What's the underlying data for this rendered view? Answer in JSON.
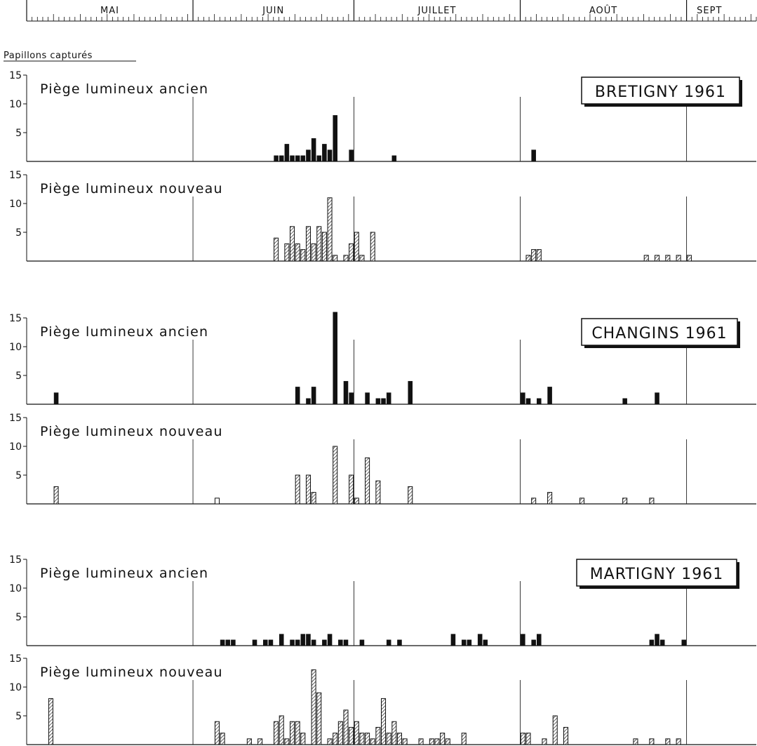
{
  "chart_data": {
    "type": "bar",
    "ylabel": "Papillons capturés",
    "months": [
      "MAI",
      "JUIN",
      "JUILLET",
      "AOÛT",
      "SEPT"
    ],
    "month_start_days": [
      0,
      31,
      61,
      92,
      123
    ],
    "x_range_days": [
      0,
      136
    ],
    "ylim": [
      0,
      15
    ],
    "yticks": [
      5,
      10,
      15
    ],
    "panel_labels": {
      "ancien": "Piège lumineux ancien",
      "nouveau": "Piège lumineux nouveau"
    },
    "stations": [
      {
        "name": "BRETIGNY 1961",
        "series": [
          {
            "name": "Piège lumineux ancien",
            "style": "solid",
            "bars": [
              [
                46,
                1
              ],
              [
                47,
                1
              ],
              [
                48,
                3
              ],
              [
                49,
                1
              ],
              [
                50,
                1
              ],
              [
                51,
                1
              ],
              [
                52,
                2
              ],
              [
                53,
                4
              ],
              [
                54,
                1
              ],
              [
                55,
                3
              ],
              [
                56,
                2
              ],
              [
                57,
                8
              ],
              [
                60,
                2
              ],
              [
                68,
                1
              ],
              [
                94,
                2
              ]
            ]
          },
          {
            "name": "Piège lumineux nouveau",
            "style": "hatched",
            "bars": [
              [
                46,
                4
              ],
              [
                48,
                3
              ],
              [
                49,
                6
              ],
              [
                50,
                3
              ],
              [
                51,
                2
              ],
              [
                52,
                6
              ],
              [
                53,
                3
              ],
              [
                54,
                6
              ],
              [
                55,
                5
              ],
              [
                56,
                11
              ],
              [
                57,
                1
              ],
              [
                59,
                1
              ],
              [
                60,
                3
              ],
              [
                61,
                5
              ],
              [
                62,
                1
              ],
              [
                64,
                5
              ],
              [
                93,
                1
              ],
              [
                94,
                2
              ],
              [
                95,
                2
              ],
              [
                115,
                1
              ],
              [
                117,
                1
              ],
              [
                119,
                1
              ],
              [
                121,
                1
              ],
              [
                123,
                1
              ]
            ]
          }
        ]
      },
      {
        "name": "CHANGINS 1961",
        "series": [
          {
            "name": "Piège lumineux ancien",
            "style": "solid",
            "bars": [
              [
                5,
                2
              ],
              [
                50,
                3
              ],
              [
                52,
                1
              ],
              [
                53,
                3
              ],
              [
                57,
                16
              ],
              [
                59,
                4
              ],
              [
                60,
                2
              ],
              [
                63,
                2
              ],
              [
                65,
                1
              ],
              [
                66,
                1
              ],
              [
                67,
                2
              ],
              [
                71,
                4
              ],
              [
                92,
                2
              ],
              [
                93,
                1
              ],
              [
                95,
                1
              ],
              [
                97,
                3
              ],
              [
                111,
                1
              ],
              [
                117,
                2
              ]
            ]
          },
          {
            "name": "Piège lumineux nouveau",
            "style": "hatched",
            "bars": [
              [
                5,
                3
              ],
              [
                50,
                5
              ],
              [
                52,
                5
              ],
              [
                53,
                2
              ],
              [
                57,
                10
              ],
              [
                60,
                5
              ],
              [
                61,
                1
              ],
              [
                63,
                8
              ],
              [
                65,
                4
              ],
              [
                71,
                3
              ],
              [
                94,
                1
              ],
              [
                97,
                2
              ],
              [
                103,
                1
              ],
              [
                111,
                1
              ],
              [
                116,
                1
              ]
            ]
          },
          {
            "name": "",
            "style": "open",
            "bars": [
              [
                35,
                1
              ]
            ]
          }
        ]
      },
      {
        "name": "MARTIGNY 1961",
        "series": [
          {
            "name": "Piège lumineux ancien",
            "style": "solid",
            "bars": [
              [
                36,
                1
              ],
              [
                37,
                1
              ],
              [
                38,
                1
              ],
              [
                42,
                1
              ],
              [
                44,
                1
              ],
              [
                45,
                1
              ],
              [
                47,
                2
              ],
              [
                49,
                1
              ],
              [
                50,
                1
              ],
              [
                51,
                2
              ],
              [
                52,
                2
              ],
              [
                53,
                1
              ],
              [
                55,
                1
              ],
              [
                56,
                2
              ],
              [
                58,
                1
              ],
              [
                59,
                1
              ],
              [
                62,
                1
              ],
              [
                67,
                1
              ],
              [
                69,
                1
              ],
              [
                79,
                2
              ],
              [
                81,
                1
              ],
              [
                82,
                1
              ],
              [
                84,
                2
              ],
              [
                85,
                1
              ],
              [
                92,
                2
              ],
              [
                94,
                1
              ],
              [
                95,
                2
              ],
              [
                116,
                1
              ],
              [
                117,
                2
              ],
              [
                118,
                1
              ],
              [
                122,
                1
              ]
            ]
          },
          {
            "name": "Piège lumineux nouveau",
            "style": "hatched",
            "bars": [
              [
                4,
                8
              ],
              [
                35,
                4
              ],
              [
                36,
                2
              ],
              [
                41,
                1
              ],
              [
                43,
                1
              ],
              [
                46,
                4
              ],
              [
                47,
                5
              ],
              [
                48,
                1
              ],
              [
                49,
                4
              ],
              [
                50,
                4
              ],
              [
                51,
                2
              ],
              [
                53,
                13
              ],
              [
                54,
                9
              ],
              [
                56,
                1
              ],
              [
                57,
                2
              ],
              [
                58,
                4
              ],
              [
                59,
                6
              ],
              [
                60,
                3
              ],
              [
                61,
                4
              ],
              [
                62,
                2
              ],
              [
                63,
                2
              ],
              [
                64,
                1
              ],
              [
                65,
                3
              ],
              [
                66,
                8
              ],
              [
                67,
                2
              ],
              [
                68,
                4
              ],
              [
                69,
                2
              ],
              [
                70,
                1
              ],
              [
                73,
                1
              ],
              [
                75,
                1
              ],
              [
                76,
                1
              ],
              [
                77,
                2
              ],
              [
                78,
                1
              ],
              [
                81,
                2
              ],
              [
                92,
                2
              ],
              [
                93,
                2
              ],
              [
                96,
                1
              ],
              [
                98,
                5
              ],
              [
                100,
                3
              ],
              [
                113,
                1
              ],
              [
                116,
                1
              ],
              [
                119,
                1
              ],
              [
                121,
                1
              ]
            ]
          }
        ]
      }
    ]
  }
}
